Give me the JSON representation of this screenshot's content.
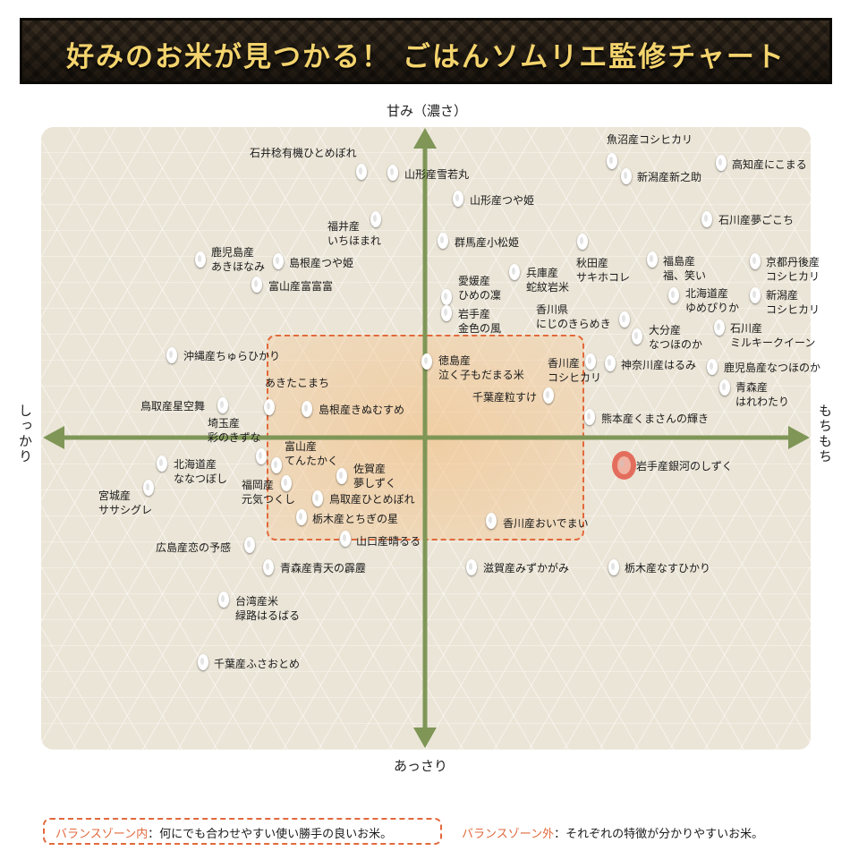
{
  "title": "好みのお米が見つかる！ ごはんソムリエ監修チャート",
  "axes": {
    "top": "甘み（濃さ）",
    "bottom": "あっさり",
    "left": "しっかり",
    "right": "もちもち"
  },
  "colors": {
    "axis": "#7f9657",
    "zone_border": "#e2693c",
    "title_text": "#f3d36d",
    "highlight": "#e25846"
  },
  "rice_varieties": [
    {
      "label": "石井稔有機ひとめぼれ",
      "grain": [
        404,
        192
      ],
      "text": [
        279,
        163
      ],
      "multiline": false
    },
    {
      "label": "山形産雪若丸",
      "grain": [
        439,
        193
      ],
      "text": [
        452,
        187
      ],
      "multiline": false
    },
    {
      "label": "山形産つや姫",
      "grain": [
        512,
        222
      ],
      "text": [
        525,
        216
      ],
      "multiline": false
    },
    {
      "label": "福井産\nいちほまれ",
      "grain": [
        420,
        245
      ],
      "text": [
        366,
        245
      ],
      "multiline": true
    },
    {
      "label": "群馬産小松姫",
      "grain": [
        495,
        269
      ],
      "text": [
        508,
        263
      ],
      "multiline": false
    },
    {
      "label": "鹿児島産\nあきほなみ",
      "grain": [
        224,
        290
      ],
      "text": [
        236,
        274
      ],
      "multiline": true
    },
    {
      "label": "島根産つや姫",
      "grain": [
        311,
        292
      ],
      "text": [
        323,
        286
      ],
      "multiline": false
    },
    {
      "label": "富山産富富富",
      "grain": [
        287,
        318
      ],
      "text": [
        300,
        312
      ],
      "multiline": false
    },
    {
      "label": "愛媛産\nひめの凜",
      "grain": [
        499,
        332
      ],
      "text": [
        512,
        306
      ],
      "multiline": true
    },
    {
      "label": "岩手産\n金色の風",
      "grain": [
        499,
        350
      ],
      "text": [
        512,
        343
      ],
      "multiline": true
    },
    {
      "label": "兵庫産\n蛇紋岩米",
      "grain": [
        575,
        304
      ],
      "text": [
        588,
        297
      ],
      "multiline": true
    },
    {
      "label": "秋田産\nサキホコレ",
      "grain": [
        651,
        270
      ],
      "text": [
        644,
        286
      ],
      "multiline": true
    },
    {
      "label": "福島産\n福、笑い",
      "grain": [
        729,
        290
      ],
      "text": [
        741,
        284
      ],
      "multiline": true
    },
    {
      "label": "京都丹後産\nコシヒカリ",
      "grain": [
        844,
        292
      ],
      "text": [
        856,
        285
      ],
      "multiline": true
    },
    {
      "label": "北海道産\nゆめぴりか",
      "grain": [
        753,
        330
      ],
      "text": [
        766,
        320
      ],
      "multiline": true
    },
    {
      "label": "新潟産\nコシヒカリ",
      "grain": [
        844,
        330
      ],
      "text": [
        856,
        322
      ],
      "multiline": true
    },
    {
      "label": "香川県\nにじのきらめき",
      "grain": [
        698,
        357
      ],
      "text": [
        599,
        338
      ],
      "multiline": true
    },
    {
      "label": "大分産\nなつほのか",
      "grain": [
        712,
        376
      ],
      "text": [
        725,
        361
      ],
      "multiline": true
    },
    {
      "label": "石川産\nミルキークイーン",
      "grain": [
        804,
        366
      ],
      "text": [
        816,
        359
      ],
      "multiline": true
    },
    {
      "label": "魚沼産コシヒカリ",
      "grain": [
        684,
        180
      ],
      "text": [
        678,
        148
      ],
      "multiline": false
    },
    {
      "label": "新潟産新之助",
      "grain": [
        700,
        197
      ],
      "text": [
        712,
        190
      ],
      "multiline": false
    },
    {
      "label": "高知産にこまる",
      "grain": [
        806,
        182
      ],
      "text": [
        818,
        176
      ],
      "multiline": false
    },
    {
      "label": "石川産夢ごこち",
      "grain": [
        790,
        245
      ],
      "text": [
        803,
        238
      ],
      "multiline": false
    },
    {
      "label": "沖縄産ちゅらひかり",
      "grain": [
        192,
        397
      ],
      "text": [
        205,
        390
      ],
      "multiline": false
    },
    {
      "label": "徳島産\n泣く子もだまる米",
      "grain": [
        477,
        404
      ],
      "text": [
        490,
        395
      ],
      "multiline": true
    },
    {
      "label": "香川産\nコシヒカリ",
      "grain": [
        660,
        404
      ],
      "text": [
        612,
        398
      ],
      "multiline": true
    },
    {
      "label": "神奈川産はるみ",
      "grain": [
        682,
        406
      ],
      "text": [
        694,
        400
      ],
      "multiline": false
    },
    {
      "label": "鹿児島産なつほのか",
      "grain": [
        796,
        410
      ],
      "text": [
        809,
        403
      ],
      "multiline": false
    },
    {
      "label": "あきたこまち",
      "grain": [
        301,
        455
      ],
      "text": [
        296,
        420
      ],
      "multiline": false
    },
    {
      "label": "千葉産粒すけ",
      "grain": [
        613,
        442
      ],
      "text": [
        528,
        436
      ],
      "multiline": false
    },
    {
      "label": "青森産\nはれわたり",
      "grain": [
        810,
        433
      ],
      "text": [
        822,
        425
      ],
      "multiline": true
    },
    {
      "label": "鳥取産星空舞",
      "grain": [
        249,
        453
      ],
      "text": [
        157,
        446
      ],
      "multiline": false
    },
    {
      "label": "島根産きぬむすめ",
      "grain": [
        343,
        457
      ],
      "text": [
        356,
        450
      ],
      "multiline": false
    },
    {
      "label": "熊本産くまさんの輝き",
      "grain": [
        659,
        466
      ],
      "text": [
        672,
        460
      ],
      "multiline": false
    },
    {
      "label": "埼玉産\n彩のきずな",
      "grain": [
        292,
        510
      ],
      "text": [
        232,
        465
      ],
      "multiline": true
    },
    {
      "label": "富山産\nてんたかく",
      "grain": [
        309,
        520
      ],
      "text": [
        318,
        491
      ],
      "multiline": true
    },
    {
      "label": "北海道産\nななつぼし",
      "grain": [
        181,
        518
      ],
      "text": [
        194,
        511
      ],
      "multiline": true
    },
    {
      "label": "佐賀産\n夢しずく",
      "grain": [
        382,
        532
      ],
      "text": [
        395,
        516
      ],
      "multiline": true
    },
    {
      "label": "福岡産\n元気つくし",
      "grain": [
        320,
        540
      ],
      "text": [
        270,
        534
      ],
      "multiline": true
    },
    {
      "label": "岩手産銀河のしずく",
      "grain": [
        697,
        520
      ],
      "text": [
        711,
        513
      ],
      "multiline": false,
      "highlight": true
    },
    {
      "label": "宮城産\nササシグレ",
      "grain": [
        166,
        545
      ],
      "text": [
        110,
        546
      ],
      "multiline": true
    },
    {
      "label": "鳥取産ひとめぼれ",
      "grain": [
        355,
        557
      ],
      "text": [
        368,
        550
      ],
      "multiline": false
    },
    {
      "label": "栃木産とちぎの星",
      "grain": [
        337,
        578
      ],
      "text": [
        349,
        572
      ],
      "multiline": false
    },
    {
      "label": "香川産おいでまい",
      "grain": [
        549,
        582
      ],
      "text": [
        562,
        577
      ],
      "multiline": false
    },
    {
      "label": "山口産晴るる",
      "grain": [
        386,
        602
      ],
      "text": [
        398,
        597
      ],
      "multiline": false
    },
    {
      "label": "広島産恋の予感",
      "grain": [
        279,
        609
      ],
      "text": [
        174,
        604
      ],
      "multiline": false
    },
    {
      "label": "青森産青天の霹靂",
      "grain": [
        300,
        634
      ],
      "text": [
        313,
        627
      ],
      "multiline": false
    },
    {
      "label": "滋賀産みずかがみ",
      "grain": [
        527,
        634
      ],
      "text": [
        540,
        627
      ],
      "multiline": false
    },
    {
      "label": "栃木産なすひかり",
      "grain": [
        686,
        634
      ],
      "text": [
        698,
        627
      ],
      "multiline": false
    },
    {
      "label": "台湾産米\n緑路はるばる",
      "grain": [
        250,
        670
      ],
      "text": [
        263,
        664
      ],
      "multiline": true
    },
    {
      "label": "千葉産ふさおとめ",
      "grain": [
        227,
        740
      ],
      "text": [
        239,
        734
      ],
      "multiline": false
    }
  ],
  "legend": {
    "inside_key": "バランスゾーン内",
    "inside_text": "：何にでも合わせやすい使い勝手の良いお米。",
    "outside_key": "バランスゾーン外",
    "outside_text": "：それぞれの特徴が分かりやすいお米。"
  }
}
